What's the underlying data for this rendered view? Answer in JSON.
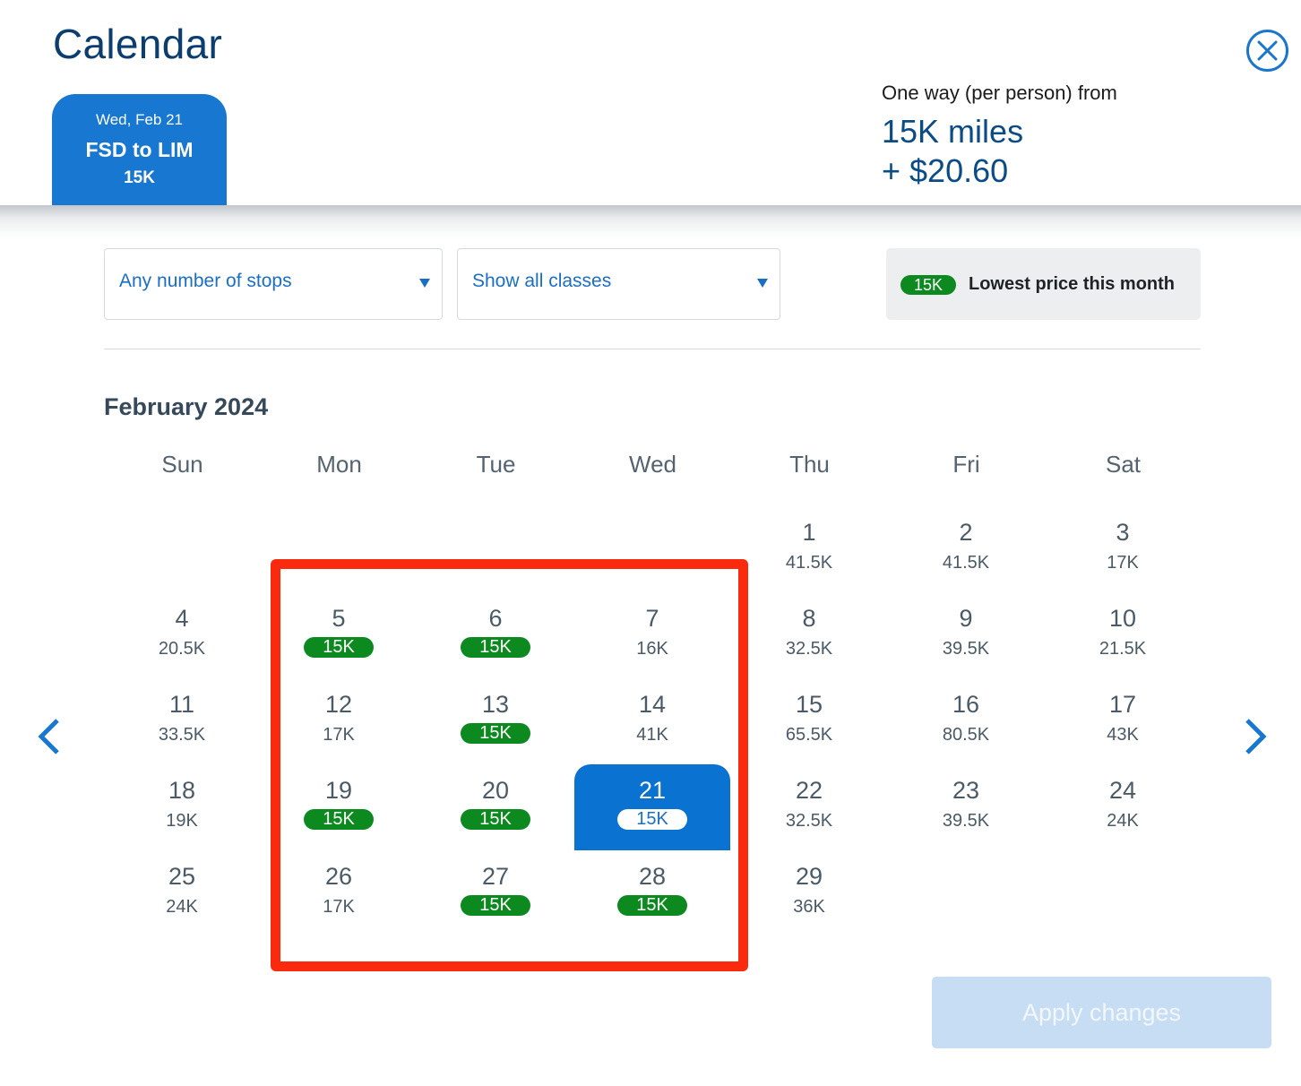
{
  "header": {
    "title": "Calendar",
    "close_icon": "close-circle-icon",
    "trip_tab": {
      "date": "Wed, Feb 21",
      "route": "FSD to LIM",
      "price": "15K"
    },
    "fare_summary": {
      "label": "One way (per person) from",
      "miles": "15K miles",
      "cash": "+ $20.60"
    }
  },
  "filters": {
    "stops": {
      "selected": "Any number of stops"
    },
    "classes": {
      "selected": "Show all classes"
    }
  },
  "legend": {
    "pill": "15K",
    "text": "Lowest price this month"
  },
  "calendar": {
    "month": "February 2024",
    "weekdays": [
      "Sun",
      "Mon",
      "Tue",
      "Wed",
      "Thu",
      "Fri",
      "Sat"
    ],
    "days": [
      {
        "day": "1",
        "price": "41.5K",
        "row": 0,
        "col": 4,
        "lowest": false
      },
      {
        "day": "2",
        "price": "41.5K",
        "row": 0,
        "col": 5,
        "lowest": false
      },
      {
        "day": "3",
        "price": "17K",
        "row": 0,
        "col": 6,
        "lowest": false
      },
      {
        "day": "4",
        "price": "20.5K",
        "row": 1,
        "col": 0,
        "lowest": false
      },
      {
        "day": "5",
        "price": "15K",
        "row": 1,
        "col": 1,
        "lowest": true
      },
      {
        "day": "6",
        "price": "15K",
        "row": 1,
        "col": 2,
        "lowest": true
      },
      {
        "day": "7",
        "price": "16K",
        "row": 1,
        "col": 3,
        "lowest": false
      },
      {
        "day": "8",
        "price": "32.5K",
        "row": 1,
        "col": 4,
        "lowest": false
      },
      {
        "day": "9",
        "price": "39.5K",
        "row": 1,
        "col": 5,
        "lowest": false
      },
      {
        "day": "10",
        "price": "21.5K",
        "row": 1,
        "col": 6,
        "lowest": false
      },
      {
        "day": "11",
        "price": "33.5K",
        "row": 2,
        "col": 0,
        "lowest": false
      },
      {
        "day": "12",
        "price": "17K",
        "row": 2,
        "col": 1,
        "lowest": false
      },
      {
        "day": "13",
        "price": "15K",
        "row": 2,
        "col": 2,
        "lowest": true
      },
      {
        "day": "14",
        "price": "41K",
        "row": 2,
        "col": 3,
        "lowest": false
      },
      {
        "day": "15",
        "price": "65.5K",
        "row": 2,
        "col": 4,
        "lowest": false
      },
      {
        "day": "16",
        "price": "80.5K",
        "row": 2,
        "col": 5,
        "lowest": false
      },
      {
        "day": "17",
        "price": "43K",
        "row": 2,
        "col": 6,
        "lowest": false
      },
      {
        "day": "18",
        "price": "19K",
        "row": 3,
        "col": 0,
        "lowest": false
      },
      {
        "day": "19",
        "price": "15K",
        "row": 3,
        "col": 1,
        "lowest": true
      },
      {
        "day": "20",
        "price": "15K",
        "row": 3,
        "col": 2,
        "lowest": true
      },
      {
        "day": "21",
        "price": "15K",
        "row": 3,
        "col": 3,
        "lowest": true,
        "selected": true
      },
      {
        "day": "22",
        "price": "32.5K",
        "row": 3,
        "col": 4,
        "lowest": false
      },
      {
        "day": "23",
        "price": "39.5K",
        "row": 3,
        "col": 5,
        "lowest": false
      },
      {
        "day": "24",
        "price": "24K",
        "row": 3,
        "col": 6,
        "lowest": false
      },
      {
        "day": "25",
        "price": "24K",
        "row": 4,
        "col": 0,
        "lowest": false
      },
      {
        "day": "26",
        "price": "17K",
        "row": 4,
        "col": 1,
        "lowest": false
      },
      {
        "day": "27",
        "price": "15K",
        "row": 4,
        "col": 2,
        "lowest": true
      },
      {
        "day": "28",
        "price": "15K",
        "row": 4,
        "col": 3,
        "lowest": true
      },
      {
        "day": "29",
        "price": "36K",
        "row": 4,
        "col": 4,
        "lowest": false
      }
    ]
  },
  "navigation": {
    "prev_icon": "chevron-left-icon",
    "next_icon": "chevron-right-icon"
  },
  "annotation": {
    "highlight_color": "#fa2a0f"
  },
  "footer": {
    "apply_label": "Apply changes"
  },
  "colors": {
    "brand_blue": "#1877d0",
    "lowest_green": "#0d8a1f",
    "title_navy": "#0b3d6e"
  }
}
